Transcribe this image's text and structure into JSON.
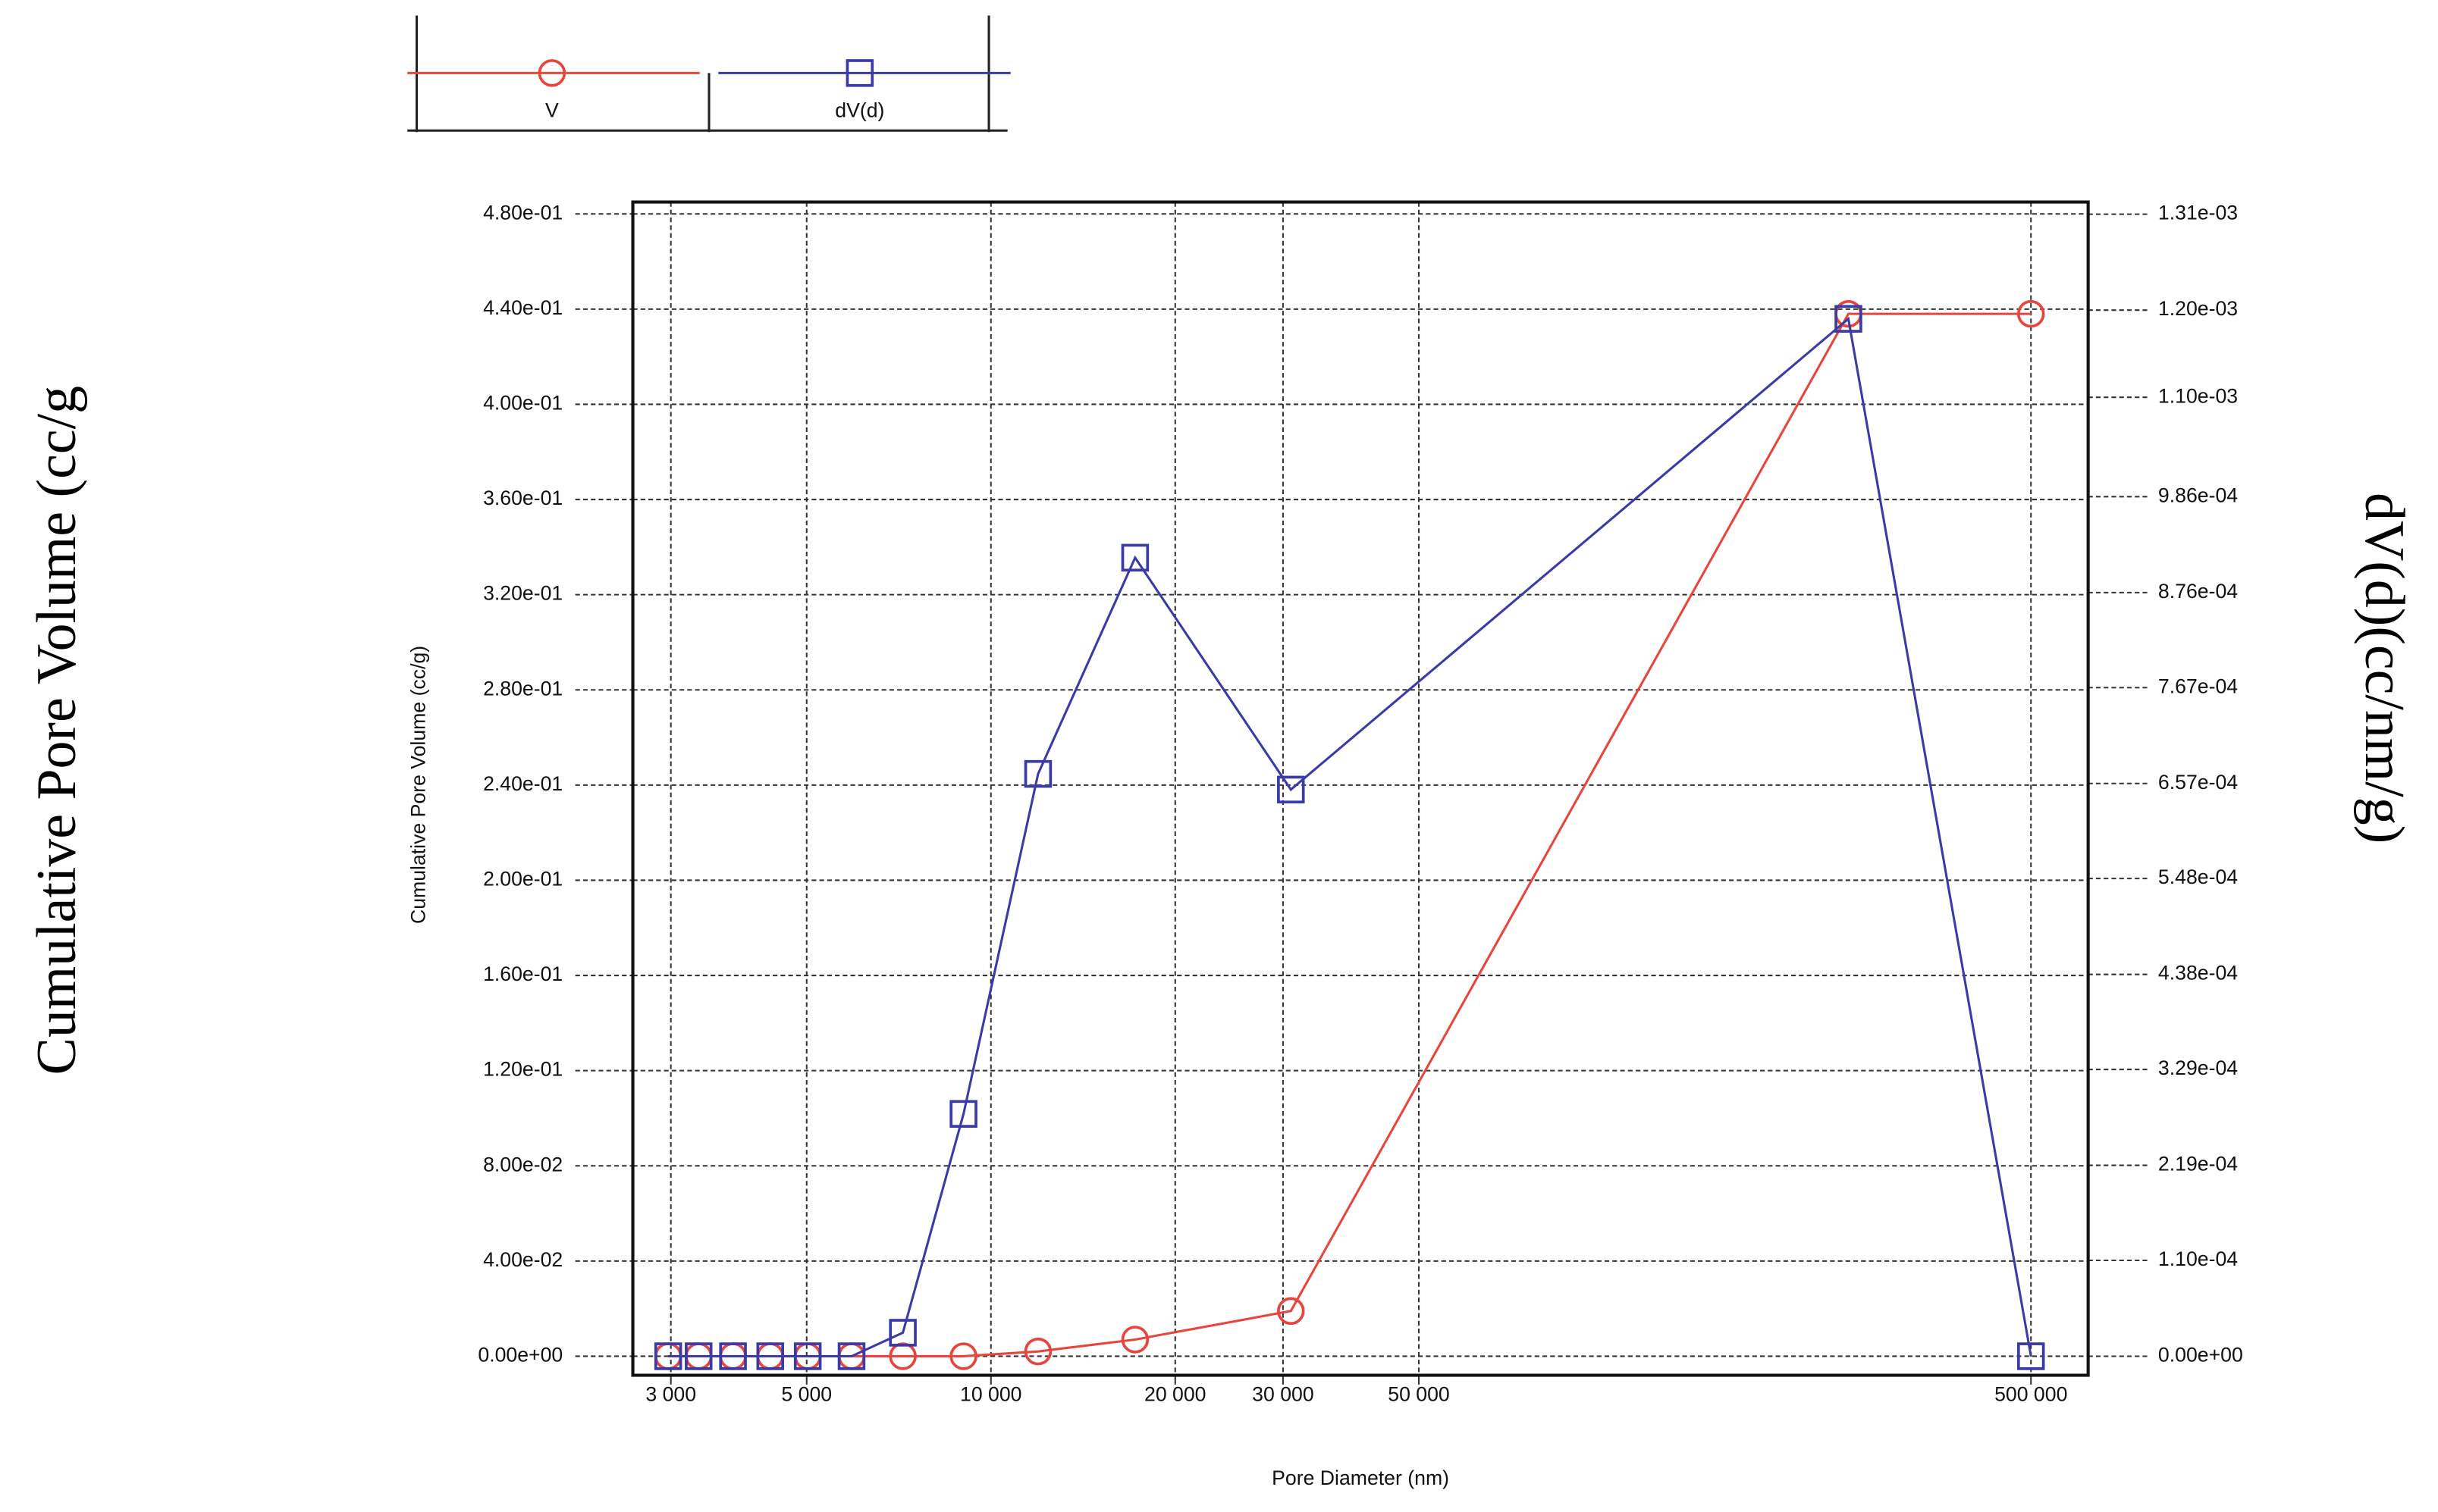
{
  "chart_data": {
    "type": "line",
    "y_label_outer": "Cumulative Pore Volume (cc/g",
    "y2_label": "dV(d)(cc/nm/g)",
    "y_label": "Cumulative Pore Volume (cc/g)",
    "x_label": "Pore Diameter (nm)",
    "x": [
      2970,
      3330,
      3790,
      4360,
      5020,
      5920,
      7180,
      9020,
      11940,
      17200,
      30900,
      251600,
      500000
    ],
    "series": [
      {
        "name": "V",
        "color": "#e8453c",
        "marker": "circle",
        "values": [
          0,
          0,
          0,
          0,
          0,
          0,
          0,
          0,
          0.002,
          0.007,
          0.019,
          0.438,
          0.438
        ]
      },
      {
        "name": "dV(d)",
        "color": "#3a3aa8",
        "marker": "square",
        "axis": "y2",
        "values": [
          0,
          0,
          0,
          0,
          0,
          0,
          2.7e-05,
          0.000278,
          0.000668,
          0.000916,
          0.00065,
          0.00119,
          0
        ]
      }
    ],
    "x_scale": "log",
    "xlim": [
      2600,
      620000
    ],
    "xticks": [
      {
        "value": 3000,
        "label": "3 000"
      },
      {
        "value": 5000,
        "label": "5 000"
      },
      {
        "value": 10000,
        "label": "10 000"
      },
      {
        "value": 20000,
        "label": "20 000"
      },
      {
        "value": 30000,
        "label": "30 000"
      },
      {
        "value": 50000,
        "label": "50 000"
      },
      {
        "value": 500000,
        "label": "500 000"
      }
    ],
    "ylim": [
      -0.008,
      0.485
    ],
    "yticks": [
      {
        "value": 0,
        "label": "0.00e+00"
      },
      {
        "value": 0.04,
        "label": "4.00e-02"
      },
      {
        "value": 0.08,
        "label": "8.00e-02"
      },
      {
        "value": 0.12,
        "label": "1.20e-01"
      },
      {
        "value": 0.16,
        "label": "1.60e-01"
      },
      {
        "value": 0.2,
        "label": "2.00e-01"
      },
      {
        "value": 0.24,
        "label": "2.40e-01"
      },
      {
        "value": 0.28,
        "label": "2.80e-01"
      },
      {
        "value": 0.32,
        "label": "3.20e-01"
      },
      {
        "value": 0.36,
        "label": "3.60e-01"
      },
      {
        "value": 0.4,
        "label": "4.00e-01"
      },
      {
        "value": 0.44,
        "label": "4.40e-01"
      },
      {
        "value": 0.48,
        "label": "4.80e-01"
      }
    ],
    "y2lim": [
      -2.18e-05,
      0.001324
    ],
    "y2ticks": [
      {
        "value": 0,
        "label": "0.00e+00"
      },
      {
        "value": 0.00011,
        "label": "1.10e-04"
      },
      {
        "value": 0.000219,
        "label": "2.19e-04"
      },
      {
        "value": 0.000329,
        "label": "3.29e-04"
      },
      {
        "value": 0.000438,
        "label": "4.38e-04"
      },
      {
        "value": 0.000548,
        "label": "5.48e-04"
      },
      {
        "value": 0.000657,
        "label": "6.57e-04"
      },
      {
        "value": 0.000767,
        "label": "7.67e-04"
      },
      {
        "value": 0.000876,
        "label": "8.76e-04"
      },
      {
        "value": 0.000986,
        "label": "9.86e-04"
      },
      {
        "value": 0.0011,
        "label": "1.10e-03"
      },
      {
        "value": 0.0012,
        "label": "1.20e-03"
      },
      {
        "value": 0.00131,
        "label": "1.31e-03"
      }
    ],
    "grid": true
  }
}
